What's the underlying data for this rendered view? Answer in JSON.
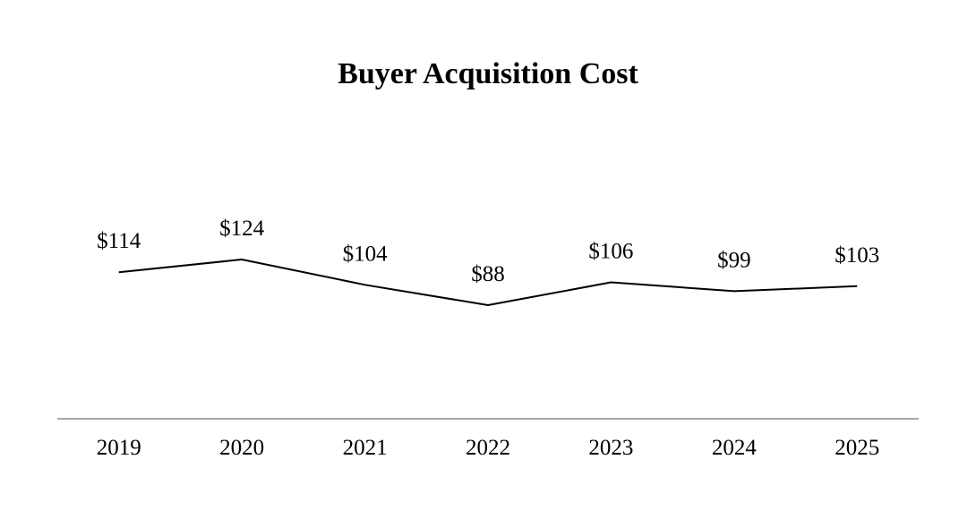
{
  "chart_data": {
    "type": "line",
    "title": "Buyer Acquisition Cost",
    "xlabel": "",
    "ylabel": "",
    "categories": [
      "2019",
      "2020",
      "2021",
      "2022",
      "2023",
      "2024",
      "2025"
    ],
    "series": [
      {
        "values": [
          114,
          124,
          104,
          88,
          106,
          99,
          103
        ],
        "labels": [
          "$114",
          "$124",
          "$104",
          "$88",
          "$106",
          "$99",
          "$103"
        ]
      }
    ],
    "ylim": [
      0,
      150
    ],
    "grid": false,
    "legend": "none",
    "colors": {
      "line": "#000000",
      "axis": "#a6a6a6",
      "text": "#000000"
    }
  }
}
